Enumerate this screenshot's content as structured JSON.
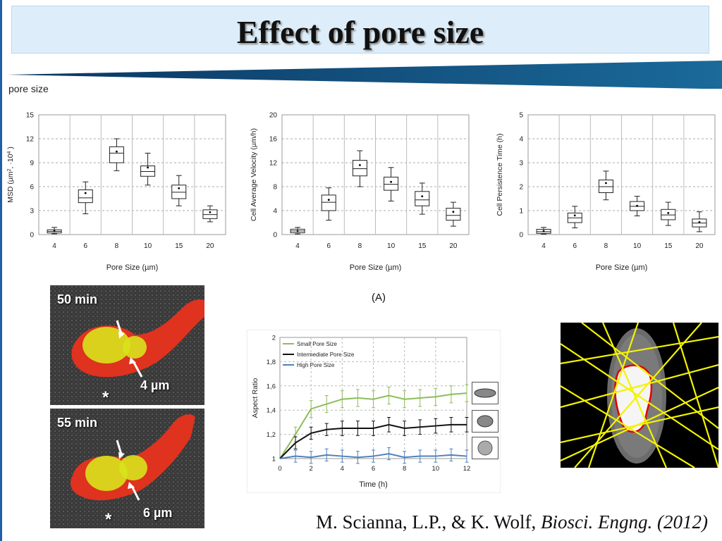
{
  "slide": {
    "title": "Effect of pore size",
    "subtitle": "pore size",
    "panel_label": "(A)",
    "micrographs": [
      {
        "time_label": "50 min",
        "size_label": "4 µm",
        "marker": "*"
      },
      {
        "time_label": "55 min",
        "size_label": "6 µm",
        "marker": "*"
      }
    ],
    "citation": {
      "authors": "M. Scianna, L.P., & K. Wolf, ",
      "journal": "Biosci. Engng.",
      "year": " (2012)"
    },
    "colors": {
      "accent": "#1a5f8a",
      "title_bg": "#ddeefa",
      "cell_red": "#e8321e",
      "cell_yellow": "#d8e21c",
      "track_yellow": "#f3f300"
    }
  },
  "chart_data": [
    {
      "type": "box",
      "xlabel": "Pore Size  (µm)",
      "ylabel_parts": [
        "MSD (µm",
        "2",
        ", ·10",
        "4",
        " )"
      ],
      "categories": [
        "4",
        "6",
        "8",
        "10",
        "15",
        "20"
      ],
      "ylim": [
        0,
        15
      ],
      "yticks": [
        "0",
        "3",
        "6",
        "9",
        "12",
        "15"
      ],
      "grid": true,
      "boxes": [
        {
          "min": 0.1,
          "q1": 0.2,
          "median": 0.4,
          "q3": 0.6,
          "max": 0.9,
          "mean": 0.45
        },
        {
          "min": 2.6,
          "q1": 4.0,
          "median": 4.6,
          "q3": 5.6,
          "max": 6.6,
          "mean": 5.2
        },
        {
          "min": 8.0,
          "q1": 9.0,
          "median": 10.2,
          "q3": 11.0,
          "max": 12.0,
          "mean": 10.4
        },
        {
          "min": 6.2,
          "q1": 7.3,
          "median": 7.9,
          "q3": 8.6,
          "max": 10.2,
          "mean": 8.4
        },
        {
          "min": 3.6,
          "q1": 4.5,
          "median": 5.3,
          "q3": 6.2,
          "max": 7.4,
          "mean": 5.8
        },
        {
          "min": 1.6,
          "q1": 2.0,
          "median": 2.5,
          "q3": 3.1,
          "max": 3.6,
          "mean": 2.8
        }
      ]
    },
    {
      "type": "box",
      "xlabel": "Pore Size  (µm)",
      "ylabel_parts": [
        "Cell Average Velocity  (µm/h)"
      ],
      "categories": [
        "4",
        "6",
        "8",
        "10",
        "15",
        "20"
      ],
      "ylim": [
        0,
        20
      ],
      "yticks": [
        "0",
        "4",
        "8",
        "12",
        "16",
        "20"
      ],
      "grid": true,
      "boxes": [
        {
          "min": 0.1,
          "q1": 0.3,
          "median": 0.6,
          "q3": 0.9,
          "max": 1.2,
          "mean": 0.6
        },
        {
          "min": 2.4,
          "q1": 4.0,
          "median": 5.4,
          "q3": 6.6,
          "max": 7.8,
          "mean": 5.8
        },
        {
          "min": 8.0,
          "q1": 9.8,
          "median": 11.0,
          "q3": 12.4,
          "max": 14.0,
          "mean": 11.6
        },
        {
          "min": 5.6,
          "q1": 7.4,
          "median": 8.4,
          "q3": 9.6,
          "max": 11.2,
          "mean": 8.8
        },
        {
          "min": 3.4,
          "q1": 4.8,
          "median": 5.8,
          "q3": 7.2,
          "max": 8.6,
          "mean": 6.4
        },
        {
          "min": 1.4,
          "q1": 2.4,
          "median": 3.2,
          "q3": 4.4,
          "max": 5.4,
          "mean": 3.8
        }
      ]
    },
    {
      "type": "box",
      "xlabel": "Pore Size  (µm)",
      "ylabel_parts": [
        "Cell Persistence Time  (h)"
      ],
      "categories": [
        "4",
        "6",
        "8",
        "10",
        "15",
        "20"
      ],
      "ylim": [
        0,
        5
      ],
      "yticks": [
        "0",
        "1",
        "2",
        "3",
        "4",
        "5"
      ],
      "grid": true,
      "boxes": [
        {
          "min": 0.02,
          "q1": 0.05,
          "median": 0.12,
          "q3": 0.22,
          "max": 0.3,
          "mean": 0.15
        },
        {
          "min": 0.28,
          "q1": 0.5,
          "median": 0.7,
          "q3": 0.9,
          "max": 1.18,
          "mean": 0.8
        },
        {
          "min": 1.45,
          "q1": 1.75,
          "median": 2.0,
          "q3": 2.28,
          "max": 2.65,
          "mean": 2.15
        },
        {
          "min": 0.78,
          "q1": 1.0,
          "median": 1.18,
          "q3": 1.38,
          "max": 1.6,
          "mean": 1.2
        },
        {
          "min": 0.38,
          "q1": 0.62,
          "median": 0.82,
          "q3": 1.05,
          "max": 1.35,
          "mean": 0.9
        },
        {
          "min": 0.12,
          "q1": 0.32,
          "median": 0.48,
          "q3": 0.65,
          "max": 0.95,
          "mean": 0.52
        }
      ]
    },
    {
      "type": "line",
      "xlabel": "Time  (h)",
      "ylabel": "Aspect Ratio",
      "xlim": [
        0,
        12
      ],
      "ylim": [
        1,
        2
      ],
      "xticks": [
        "0",
        "2",
        "4",
        "6",
        "8",
        "10",
        "12"
      ],
      "yticks": [
        "1",
        "1,2",
        "1,4",
        "1,6",
        "1,8",
        "2"
      ],
      "x": [
        0,
        1,
        2,
        3,
        4,
        5,
        6,
        7,
        8,
        9,
        10,
        11,
        12
      ],
      "legend_position": "top-left",
      "series": [
        {
          "name": "Small Pore Size",
          "color": "#8cbd5a",
          "values": [
            1.0,
            1.2,
            1.41,
            1.45,
            1.49,
            1.5,
            1.49,
            1.52,
            1.49,
            1.5,
            1.51,
            1.53,
            1.54
          ],
          "err": [
            0,
            0.06,
            0.07,
            0.07,
            0.07,
            0.07,
            0.07,
            0.07,
            0.07,
            0.07,
            0.07,
            0.07,
            0.07
          ]
        },
        {
          "name": "Intermediate Pore Size",
          "color": "#111111",
          "values": [
            1.0,
            1.13,
            1.21,
            1.24,
            1.25,
            1.25,
            1.25,
            1.28,
            1.25,
            1.26,
            1.27,
            1.28,
            1.28
          ],
          "err": [
            0,
            0.05,
            0.05,
            0.05,
            0.06,
            0.06,
            0.06,
            0.06,
            0.06,
            0.06,
            0.06,
            0.06,
            0.06
          ]
        },
        {
          "name": "High Pore Size",
          "color": "#4f81bd",
          "values": [
            1.0,
            1.02,
            1.01,
            1.03,
            1.02,
            1.01,
            1.02,
            1.04,
            1.01,
            1.02,
            1.02,
            1.03,
            1.02
          ],
          "err": [
            0,
            0.05,
            0.05,
            0.05,
            0.05,
            0.05,
            0.05,
            0.05,
            0.05,
            0.05,
            0.05,
            0.05,
            0.05
          ]
        }
      ]
    }
  ]
}
